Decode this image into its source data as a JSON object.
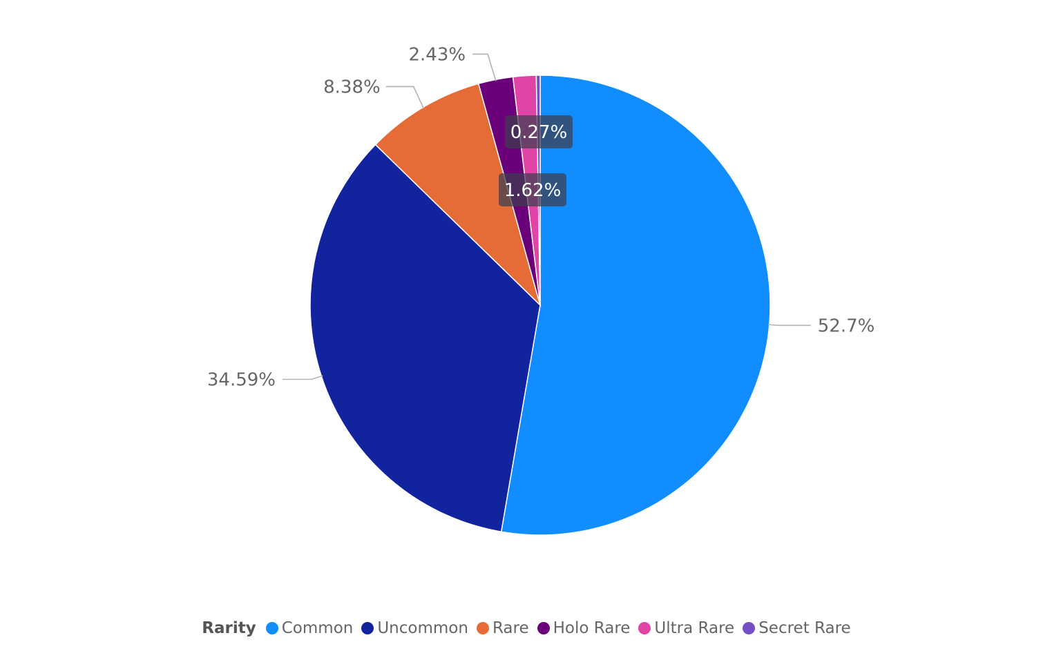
{
  "chart_data": {
    "type": "pie",
    "legend_title": "Rarity",
    "legend_position": "bottom-center",
    "start_angle_deg": 0,
    "direction": "clockwise",
    "slices": [
      {
        "name": "Common",
        "value": 52.7,
        "label": "52.7%",
        "color": "#118DFF",
        "label_style": "outside"
      },
      {
        "name": "Uncommon",
        "value": 34.59,
        "label": "34.59%",
        "color": "#12239E",
        "label_style": "outside"
      },
      {
        "name": "Rare",
        "value": 8.38,
        "label": "8.38%",
        "color": "#E66C37",
        "label_style": "outside"
      },
      {
        "name": "Holo Rare",
        "value": 2.43,
        "label": "2.43%",
        "color": "#6B007B",
        "label_style": "outside"
      },
      {
        "name": "Ultra Rare",
        "value": 1.62,
        "label": "1.62%",
        "color": "#E044A7",
        "label_style": "inside"
      },
      {
        "name": "Secret Rare",
        "value": 0.27,
        "label": "0.27%",
        "color": "#744EC2",
        "label_style": "inside"
      }
    ]
  }
}
